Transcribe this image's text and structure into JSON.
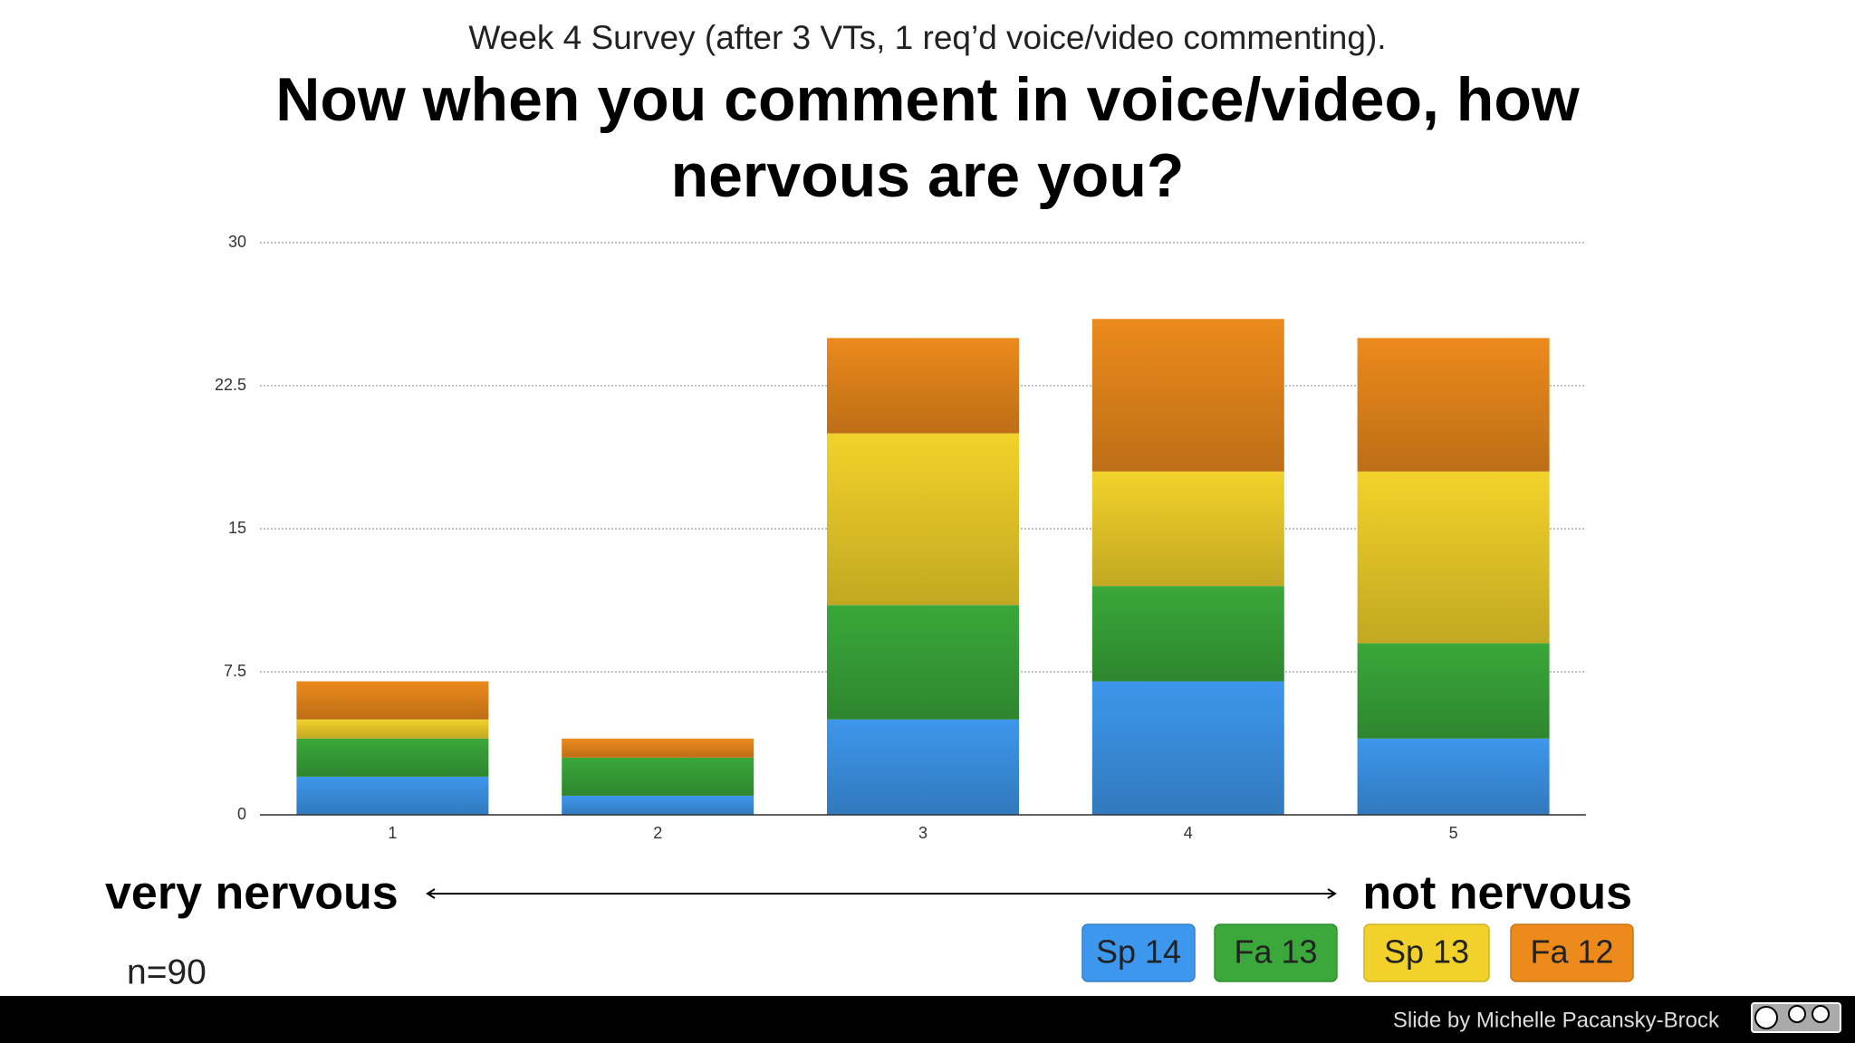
{
  "chart_data": {
    "type": "stacked_bar",
    "subtitle": "Week 4 Survey (after 3 VTs, 1 req’d voice/video commenting).",
    "title": "Now when you comment in voice/video, how nervous are you?",
    "categories": [
      "1",
      "2",
      "3",
      "4",
      "5"
    ],
    "series": [
      {
        "name": "Sp 14",
        "color": "#3d97ec",
        "values": [
          2,
          1,
          5,
          7,
          4
        ]
      },
      {
        "name": "Fa 13",
        "color": "#3aa83a",
        "values": [
          2,
          2,
          6,
          5,
          5
        ]
      },
      {
        "name": "Sp 13",
        "color": "#f2d22a",
        "values": [
          1,
          0,
          9,
          6,
          9
        ]
      },
      {
        "name": "Fa 12",
        "color": "#ec8a1c",
        "values": [
          2,
          1,
          5,
          8,
          7
        ]
      }
    ],
    "ylim": [
      0,
      30
    ],
    "yticks": [
      0,
      7.5,
      15,
      22.5,
      30
    ],
    "grid": true
  },
  "scale_labels": {
    "low": "very nervous",
    "high": "not nervous"
  },
  "note": "n=90",
  "footer": "Slide by Michelle Pacansky-Brock"
}
